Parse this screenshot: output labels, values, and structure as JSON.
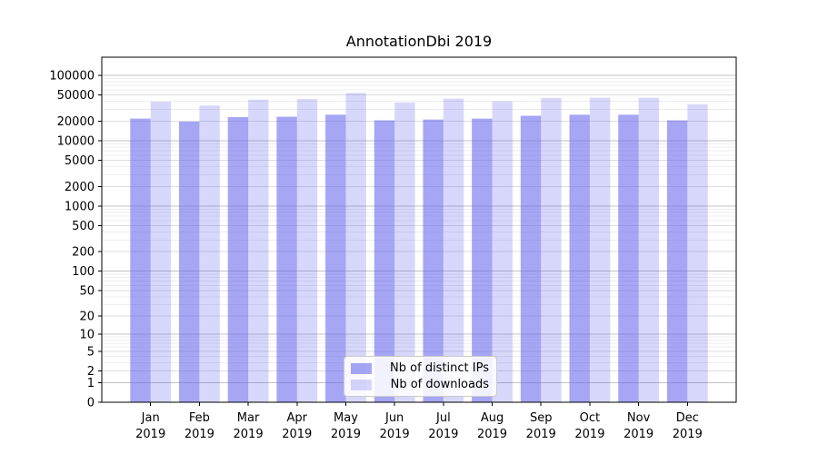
{
  "chart_data": {
    "type": "bar",
    "title": "AnnotationDbi 2019",
    "year_label": "2019",
    "categories": [
      "Jan",
      "Feb",
      "Mar",
      "Apr",
      "May",
      "Jun",
      "Jul",
      "Aug",
      "Sep",
      "Oct",
      "Nov",
      "Dec"
    ],
    "series": [
      {
        "name": "Nb of distinct IPs",
        "color": "#6666ee",
        "opacity": 0.58,
        "values": [
          21800,
          19600,
          23000,
          23300,
          25000,
          20500,
          21100,
          21800,
          24100,
          25000,
          25000,
          20500
        ]
      },
      {
        "name": "Nb of downloads",
        "color": "#6666ee",
        "opacity": 0.26,
        "values": [
          39500,
          34600,
          42500,
          43500,
          54000,
          38500,
          44000,
          40000,
          45000,
          45500,
          45500,
          36000
        ]
      }
    ],
    "yscale": "log1p",
    "yticks": [
      0,
      1,
      2,
      5,
      10,
      20,
      50,
      100,
      200,
      500,
      1000,
      2000,
      5000,
      10000,
      20000,
      50000,
      100000
    ],
    "ylim": [
      0,
      160000
    ],
    "xlabel": "",
    "ylabel": "",
    "grid": true,
    "legend_position": "bottom-center-inside",
    "colors": {
      "grid_minor": "#ededed",
      "grid_labeled": "#dcdcdc",
      "grid_decade": "#c2c2c2",
      "spine": "#000000",
      "tick": "#000000",
      "text": "#000000"
    }
  }
}
